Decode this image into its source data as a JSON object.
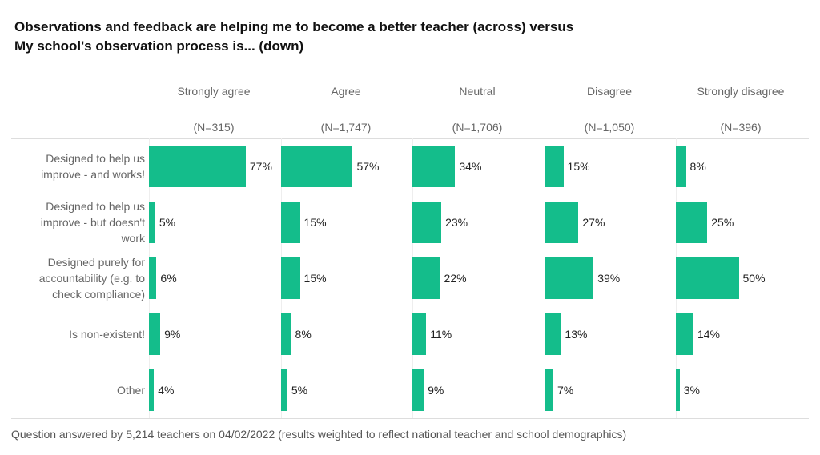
{
  "chart_data": {
    "type": "bar",
    "title_lines": [
      "Observations and feedback are helping me to become a better teacher (across) versus",
      "My school's observation process is... (down)"
    ],
    "columns": [
      {
        "label": "Strongly agree",
        "n": "(N=315)"
      },
      {
        "label": "Agree",
        "n": "(N=1,747)"
      },
      {
        "label": "Neutral",
        "n": "(N=1,706)"
      },
      {
        "label": "Disagree",
        "n": "(N=1,050)"
      },
      {
        "label": "Strongly disagree",
        "n": "(N=396)"
      }
    ],
    "categories": [
      [
        "Designed to help us",
        "improve - and works!"
      ],
      [
        "Designed to help us",
        "improve - but doesn't",
        "work"
      ],
      [
        "Designed purely for",
        "accountability (e.g. to",
        "check compliance)"
      ],
      [
        "Is non-existent!"
      ],
      [
        "Other"
      ]
    ],
    "values": [
      [
        77,
        57,
        34,
        15,
        8
      ],
      [
        5,
        15,
        23,
        27,
        25
      ],
      [
        6,
        15,
        22,
        39,
        50
      ],
      [
        9,
        8,
        11,
        13,
        14
      ],
      [
        4,
        5,
        9,
        7,
        3
      ]
    ],
    "unit": "%",
    "xlim": [
      0,
      100
    ],
    "bar_color": "#14BD8B",
    "footnote": "Question answered by 5,214 teachers on 04/02/2022 (results weighted to reflect national teacher and school demographics)"
  }
}
